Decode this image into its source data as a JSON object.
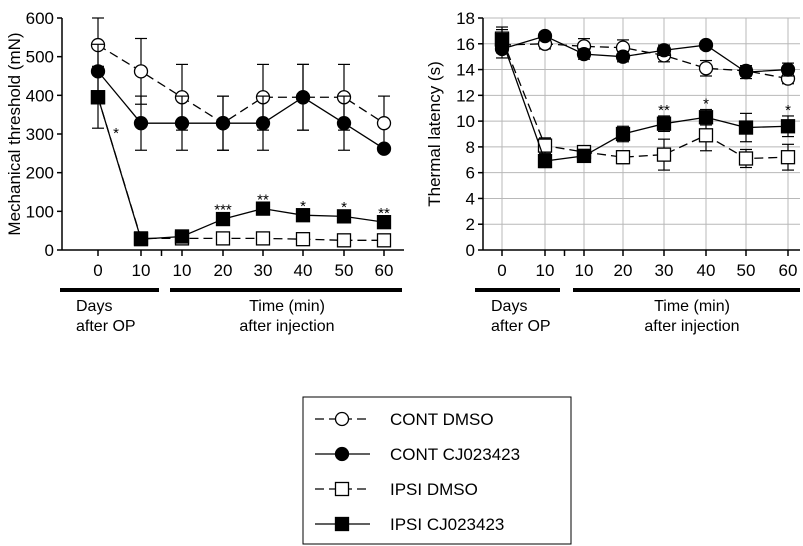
{
  "chart_data": [
    {
      "type": "line",
      "ylabel": "Mechanical threshold (mN)",
      "ylim": [
        0,
        600
      ],
      "yticks": [
        0,
        100,
        200,
        300,
        400,
        500,
        600
      ],
      "categories": [
        "0",
        "10",
        "10",
        "20",
        "30",
        "40",
        "50",
        "60"
      ],
      "group_labels": {
        "days": [
          "Days",
          "after OP"
        ],
        "time": [
          "Time (min)",
          "after injection"
        ]
      },
      "grid": false,
      "series": [
        {
          "name": "CONT DMSO",
          "values": [
            530,
            462,
            395,
            328,
            395,
            395,
            395,
            328
          ],
          "error": [
            70,
            85,
            85,
            70,
            85,
            85,
            85,
            70
          ]
        },
        {
          "name": "CONT CJ023423",
          "values": [
            462,
            328,
            328,
            328,
            328,
            395,
            328,
            262
          ],
          "error": [
            70,
            70,
            70,
            70,
            70,
            85,
            70,
            0
          ]
        },
        {
          "name": "IPSI DMSO",
          "values": [
            395,
            30,
            30,
            30,
            30,
            28,
            25,
            25
          ],
          "error": [
            0,
            0,
            0,
            0,
            0,
            0,
            0,
            0
          ]
        },
        {
          "name": "IPSI CJ023423",
          "values": [
            395,
            28,
            35,
            80,
            107,
            90,
            87,
            72
          ],
          "error": [
            80,
            0,
            0,
            12,
            12,
            12,
            12,
            12
          ]
        }
      ],
      "annotations": [
        {
          "x_index": 1,
          "y": 310,
          "text": "*"
        },
        {
          "x_index": 3,
          "y": 112,
          "text": "***"
        },
        {
          "x_index": 4,
          "y": 139,
          "text": "**"
        },
        {
          "x_index": 5,
          "y": 122,
          "text": "*"
        },
        {
          "x_index": 6,
          "y": 119,
          "text": "*"
        },
        {
          "x_index": 7,
          "y": 104,
          "text": "**"
        }
      ]
    },
    {
      "type": "line",
      "ylabel": "Thermal latency (s)",
      "ylim": [
        0,
        18
      ],
      "yticks": [
        0,
        2,
        4,
        6,
        8,
        10,
        12,
        14,
        16,
        18
      ],
      "categories": [
        "0",
        "10",
        "10",
        "20",
        "30",
        "40",
        "50",
        "60"
      ],
      "group_labels": {
        "days": [
          "Days",
          "after OP"
        ],
        "time": [
          "Time (min)",
          "after injection"
        ]
      },
      "grid": true,
      "series": [
        {
          "name": "CONT DMSO",
          "values": [
            15.9,
            16.0,
            15.8,
            15.7,
            15.1,
            14.1,
            13.9,
            13.3
          ],
          "error": [
            0.6,
            0.4,
            0.6,
            0.6,
            0.5,
            0.6,
            0.4,
            0.4
          ]
        },
        {
          "name": "CONT CJ023423",
          "values": [
            15.6,
            16.6,
            15.2,
            15.0,
            15.5,
            15.9,
            13.8,
            14.0
          ],
          "error": [
            0.7,
            0.3,
            0.4,
            0.4,
            0.4,
            0.3,
            0.5,
            0.5
          ]
        },
        {
          "name": "IPSI DMSO",
          "values": [
            16.4,
            8.1,
            7.6,
            7.2,
            7.4,
            8.9,
            7.1,
            7.2
          ],
          "error": [
            0.9,
            0.6,
            0.5,
            0.5,
            1.2,
            1.2,
            0.7,
            1.0
          ]
        },
        {
          "name": "IPSI CJ023423",
          "values": [
            16.3,
            6.9,
            7.3,
            9.0,
            9.8,
            10.3,
            9.5,
            9.6
          ],
          "error": [
            0.8,
            0.5,
            0.5,
            0.6,
            0.6,
            0.6,
            1.1,
            0.8
          ]
        }
      ],
      "annotations": [
        {
          "x_index": 4,
          "y": 11.1,
          "text": "**"
        },
        {
          "x_index": 5,
          "y": 11.6,
          "text": "*"
        },
        {
          "x_index": 7,
          "y": 11.1,
          "text": "*"
        }
      ]
    }
  ],
  "legend": [
    {
      "label": "CONT DMSO",
      "marker": "circle-open",
      "line": "dashed"
    },
    {
      "label": "CONT CJ023423",
      "marker": "circle-filled",
      "line": "solid"
    },
    {
      "label": "IPSI DMSO",
      "marker": "square-open",
      "line": "dashed"
    },
    {
      "label": "IPSI CJ023423",
      "marker": "square-filled",
      "line": "solid"
    }
  ]
}
